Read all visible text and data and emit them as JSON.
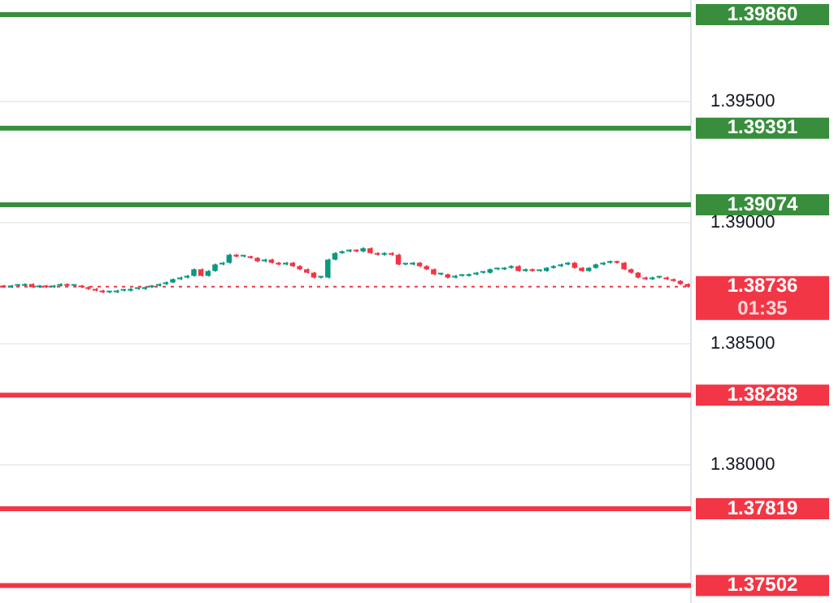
{
  "chart_data": {
    "type": "candlestick",
    "categories": [
      null,
      null,
      null,
      null,
      null,
      null,
      null,
      null,
      null,
      null,
      null,
      null,
      null,
      null,
      null,
      null,
      null,
      null,
      null,
      null,
      null,
      null,
      null,
      null,
      null,
      null,
      null,
      null,
      null,
      null,
      null,
      null,
      null,
      null,
      null,
      null,
      null,
      null,
      null,
      null,
      null,
      null,
      null,
      null,
      null,
      null,
      null,
      null,
      null,
      null,
      null,
      null,
      null,
      null,
      null,
      null,
      null,
      null,
      null,
      null,
      null,
      null,
      null,
      null,
      null,
      null,
      null,
      null,
      null,
      null,
      null,
      null,
      null,
      null,
      null,
      null,
      null,
      null,
      null,
      null,
      null,
      null,
      null,
      null,
      null,
      null,
      null,
      null,
      null,
      null,
      null,
      null,
      null,
      null,
      null,
      null,
      null,
      null
    ],
    "colors": [
      "#f23645",
      "#089981",
      "#089981",
      "#089981",
      "#f23645",
      "#089981",
      "#f23645",
      "#089981",
      "#089981",
      "#f23645",
      "#089981",
      "#f23645",
      "#f23645",
      "#f23645",
      "#f23645",
      "#089981",
      "#089981",
      "#089981",
      "#089981",
      "#089981",
      "#089981",
      "#089981",
      "#089981",
      "#089981",
      "#089981",
      "#089981",
      "#089981",
      "#089981",
      "#f23645",
      "#089981",
      "#089981",
      "#089981",
      "#089981",
      "#f23645",
      "#089981",
      "#f23645",
      "#f23645",
      "#089981",
      "#f23645",
      "#f23645",
      "#089981",
      "#f23645",
      "#f23645",
      "#f23645",
      "#f23645",
      "#089981",
      "#089981",
      "#089981",
      "#089981",
      "#089981",
      "#f23645",
      "#089981",
      "#f23645",
      "#f23645",
      "#089981",
      "#f23645",
      "#f23645",
      "#089981",
      "#089981",
      "#f23645",
      "#f23645",
      "#f23645",
      "#089981",
      "#f23645",
      "#089981",
      "#089981",
      "#089981",
      "#089981",
      "#089981",
      "#089981",
      "#089981",
      "#089981",
      "#089981",
      "#f23645",
      "#089981",
      "#f23645",
      "#089981",
      "#089981",
      "#089981",
      "#089981",
      "#089981",
      "#f23645",
      "#f23645",
      "#089981",
      "#089981",
      "#089981",
      "#089981",
      "#f23645",
      "#f23645",
      "#f23645",
      "#f23645",
      "#f23645",
      "#089981",
      "#089981",
      "#f23645",
      "#f23645",
      "#f23645",
      "#f23645"
    ],
    "ohlc": [
      [
        1.3874,
        1.38743,
        1.38731,
        1.38734
      ],
      [
        1.38734,
        1.38743,
        1.38731,
        1.3874
      ],
      [
        1.3874,
        1.38743,
        1.38737,
        1.3874
      ],
      [
        1.3874,
        1.3875,
        1.38737,
        1.38747
      ],
      [
        1.38747,
        1.3875,
        1.38731,
        1.38734
      ],
      [
        1.38734,
        1.38743,
        1.38731,
        1.3874
      ],
      [
        1.3874,
        1.38743,
        1.38731,
        1.38734
      ],
      [
        1.38734,
        1.38743,
        1.38731,
        1.3874
      ],
      [
        1.3874,
        1.3875,
        1.38737,
        1.38747
      ],
      [
        1.38747,
        1.3875,
        1.38737,
        1.3874
      ],
      [
        1.3874,
        1.38743,
        1.38737,
        1.3874
      ],
      [
        1.3874,
        1.38743,
        1.38731,
        1.38734
      ],
      [
        1.38734,
        1.38737,
        1.38724,
        1.38727
      ],
      [
        1.38727,
        1.3873,
        1.38717,
        1.3872
      ],
      [
        1.3872,
        1.38723,
        1.3871,
        1.38713
      ],
      [
        1.38713,
        1.38716,
        1.3871,
        1.38713
      ],
      [
        1.38713,
        1.38723,
        1.3871,
        1.3872
      ],
      [
        1.3872,
        1.38723,
        1.38717,
        1.3872
      ],
      [
        1.3872,
        1.3873,
        1.38717,
        1.38727
      ],
      [
        1.38727,
        1.3873,
        1.38724,
        1.38727
      ],
      [
        1.38727,
        1.38737,
        1.38724,
        1.38734
      ],
      [
        1.38734,
        1.38743,
        1.38731,
        1.3874
      ],
      [
        1.3874,
        1.3875,
        1.38737,
        1.38747
      ],
      [
        1.38747,
        1.38757,
        1.38744,
        1.38754
      ],
      [
        1.38754,
        1.3877,
        1.38751,
        1.38767
      ],
      [
        1.38767,
        1.38777,
        1.38764,
        1.38774
      ],
      [
        1.38774,
        1.38784,
        1.38771,
        1.38781
      ],
      [
        1.38781,
        1.38811,
        1.38778,
        1.38808
      ],
      [
        1.38808,
        1.38811,
        1.38778,
        1.38781
      ],
      [
        1.38781,
        1.38804,
        1.38778,
        1.38801
      ],
      [
        1.38801,
        1.38831,
        1.38798,
        1.38828
      ],
      [
        1.38828,
        1.38838,
        1.38825,
        1.38835
      ],
      [
        1.38835,
        1.38871,
        1.38832,
        1.38868
      ],
      [
        1.38868,
        1.38871,
        1.38858,
        1.38861
      ],
      [
        1.38861,
        1.38864,
        1.38858,
        1.38861
      ],
      [
        1.38861,
        1.38864,
        1.38852,
        1.38855
      ],
      [
        1.38855,
        1.38858,
        1.38838,
        1.38841
      ],
      [
        1.38841,
        1.38851,
        1.38838,
        1.38848
      ],
      [
        1.38848,
        1.38851,
        1.38832,
        1.38835
      ],
      [
        1.38835,
        1.38838,
        1.38825,
        1.38828
      ],
      [
        1.38828,
        1.38838,
        1.38825,
        1.38835
      ],
      [
        1.38835,
        1.38838,
        1.38818,
        1.38821
      ],
      [
        1.38821,
        1.38824,
        1.38805,
        1.38808
      ],
      [
        1.38808,
        1.38811,
        1.38791,
        1.38794
      ],
      [
        1.38794,
        1.38797,
        1.38771,
        1.38774
      ],
      [
        1.38774,
        1.38777,
        1.38771,
        1.38774
      ],
      [
        1.38774,
        1.38851,
        1.38771,
        1.38848
      ],
      [
        1.38848,
        1.38878,
        1.38845,
        1.38875
      ],
      [
        1.38875,
        1.38885,
        1.38872,
        1.38882
      ],
      [
        1.38882,
        1.38891,
        1.38879,
        1.38888
      ],
      [
        1.38888,
        1.38891,
        1.38879,
        1.38882
      ],
      [
        1.38882,
        1.38898,
        1.38879,
        1.38895
      ],
      [
        1.38895,
        1.38898,
        1.38872,
        1.38875
      ],
      [
        1.38875,
        1.38878,
        1.38865,
        1.38868
      ],
      [
        1.38868,
        1.38878,
        1.38865,
        1.38875
      ],
      [
        1.38875,
        1.38878,
        1.38865,
        1.38868
      ],
      [
        1.38868,
        1.38871,
        1.38825,
        1.38828
      ],
      [
        1.38828,
        1.38831,
        1.38825,
        1.38828
      ],
      [
        1.38828,
        1.38838,
        1.38825,
        1.38835
      ],
      [
        1.38835,
        1.38838,
        1.38818,
        1.38821
      ],
      [
        1.38821,
        1.38824,
        1.38805,
        1.38808
      ],
      [
        1.38808,
        1.38811,
        1.38784,
        1.38787
      ],
      [
        1.38787,
        1.3879,
        1.38784,
        1.38787
      ],
      [
        1.38787,
        1.3879,
        1.38771,
        1.38774
      ],
      [
        1.38774,
        1.38784,
        1.38771,
        1.38781
      ],
      [
        1.38781,
        1.38784,
        1.38778,
        1.38781
      ],
      [
        1.38781,
        1.3879,
        1.38778,
        1.38787
      ],
      [
        1.38787,
        1.38797,
        1.38784,
        1.38794
      ],
      [
        1.38794,
        1.38797,
        1.38791,
        1.38794
      ],
      [
        1.38794,
        1.38811,
        1.38791,
        1.38808
      ],
      [
        1.38808,
        1.38811,
        1.38805,
        1.38808
      ],
      [
        1.38808,
        1.38817,
        1.38805,
        1.38814
      ],
      [
        1.38814,
        1.38824,
        1.38811,
        1.38821
      ],
      [
        1.38821,
        1.38824,
        1.38798,
        1.38801
      ],
      [
        1.38801,
        1.38811,
        1.38798,
        1.38808
      ],
      [
        1.38808,
        1.38811,
        1.38798,
        1.38801
      ],
      [
        1.38801,
        1.38804,
        1.38798,
        1.38801
      ],
      [
        1.38801,
        1.38817,
        1.38798,
        1.38814
      ],
      [
        1.38814,
        1.38824,
        1.38811,
        1.38821
      ],
      [
        1.38821,
        1.38831,
        1.38818,
        1.38828
      ],
      [
        1.38828,
        1.38838,
        1.38825,
        1.38835
      ],
      [
        1.38835,
        1.38838,
        1.38811,
        1.38814
      ],
      [
        1.38814,
        1.38817,
        1.38798,
        1.38801
      ],
      [
        1.38801,
        1.38817,
        1.38798,
        1.38814
      ],
      [
        1.38814,
        1.38831,
        1.38811,
        1.38828
      ],
      [
        1.38828,
        1.38838,
        1.38825,
        1.38835
      ],
      [
        1.38835,
        1.38844,
        1.38832,
        1.38841
      ],
      [
        1.38841,
        1.38844,
        1.38832,
        1.38835
      ],
      [
        1.38835,
        1.38838,
        1.38805,
        1.38808
      ],
      [
        1.38808,
        1.38811,
        1.38791,
        1.38794
      ],
      [
        1.38794,
        1.38797,
        1.38771,
        1.38774
      ],
      [
        1.38774,
        1.38777,
        1.38764,
        1.38767
      ],
      [
        1.38767,
        1.38777,
        1.38764,
        1.38774
      ],
      [
        1.38774,
        1.38777,
        1.38771,
        1.38774
      ],
      [
        1.38774,
        1.38777,
        1.38764,
        1.38767
      ],
      [
        1.38767,
        1.3877,
        1.38757,
        1.3876
      ],
      [
        1.3876,
        1.38763,
        1.38744,
        1.38747
      ],
      [
        1.38747,
        1.3875,
        1.38733,
        1.38736
      ]
    ],
    "ylim": [
      1.3743,
      1.3992
    ],
    "yticks": [
      {
        "value": 1.38,
        "label": "1.38000"
      },
      {
        "value": 1.385,
        "label": "1.38500"
      },
      {
        "value": 1.39,
        "label": "1.39000"
      },
      {
        "value": 1.395,
        "label": "1.39500"
      }
    ],
    "tick_labels": "y",
    "grid": "y",
    "ref_lines": [
      {
        "axis": "y",
        "value": 1.3986,
        "label": "1.39860",
        "color": "#388e3c"
      },
      {
        "axis": "y",
        "value": 1.39391,
        "label": "1.39391",
        "color": "#388e3c"
      },
      {
        "axis": "y",
        "value": 1.39074,
        "label": "1.39074",
        "color": "#388e3c"
      },
      {
        "axis": "y",
        "value": 1.38736,
        "label": "1.38736",
        "color": "#f23645",
        "line_style": "dotted"
      },
      {
        "axis": "y",
        "value": 1.38288,
        "label": "1.38288",
        "color": "#f23645"
      },
      {
        "axis": "y",
        "value": 1.37819,
        "label": "1.37819",
        "color": "#f23645"
      },
      {
        "axis": "y",
        "value": 1.37502,
        "label": "1.37502",
        "color": "#f23645"
      }
    ],
    "annotations": [
      "01:35"
    ]
  }
}
